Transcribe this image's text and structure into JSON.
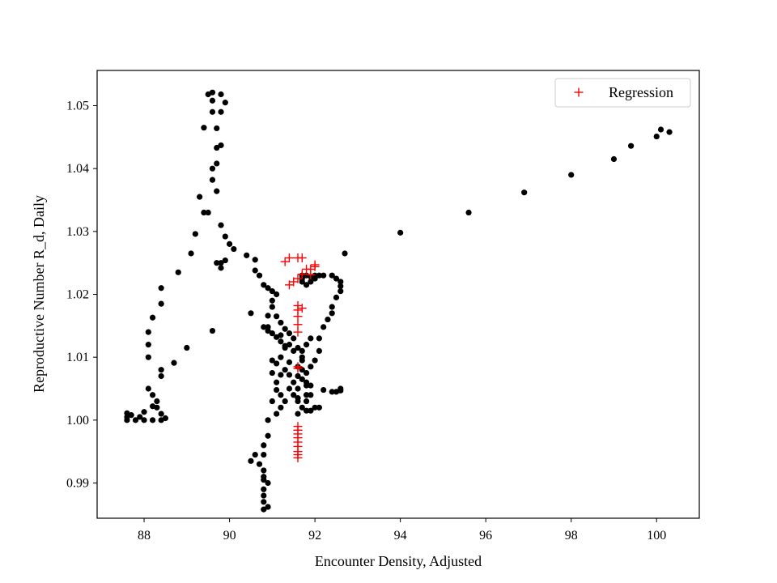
{
  "chart_data": {
    "type": "scatter",
    "title": "",
    "xlabel": "Encounter Density, Adjusted",
    "ylabel": "Reproductive Number R_d, Daily",
    "xlim": [
      86.9,
      101.0
    ],
    "ylim": [
      0.9844,
      1.0556
    ],
    "xticks": [
      88,
      90,
      92,
      94,
      96,
      98,
      100
    ],
    "yticks": [
      0.99,
      1.0,
      1.01,
      1.02,
      1.03,
      1.04,
      1.05
    ],
    "grid": false,
    "legend_position": "upper-right",
    "colors": {
      "observed": "#000000",
      "regression": "#ff0000"
    },
    "series": [
      {
        "marker": "circle",
        "color": "#000000",
        "points": [
          [
            87.6,
            1.0011
          ],
          [
            87.6,
            1.0005
          ],
          [
            87.6,
            1.0
          ],
          [
            87.7,
            1.0008
          ],
          [
            87.8,
            1.0
          ],
          [
            87.9,
            1.0005
          ],
          [
            88.0,
            1.0
          ],
          [
            88.0,
            1.0013
          ],
          [
            88.2,
            1.0
          ],
          [
            88.1,
            1.005
          ],
          [
            88.2,
            1.004
          ],
          [
            88.3,
            1.003
          ],
          [
            88.4,
            1.007
          ],
          [
            88.4,
            1.008
          ],
          [
            88.2,
            1.0022
          ],
          [
            88.3,
            1.002
          ],
          [
            88.4,
            1.001
          ],
          [
            88.4,
            1.0
          ],
          [
            88.5,
            1.0003
          ],
          [
            88.1,
            1.01
          ],
          [
            88.1,
            1.012
          ],
          [
            88.1,
            1.014
          ],
          [
            88.2,
            1.0163
          ],
          [
            88.4,
            1.0185
          ],
          [
            88.4,
            1.021
          ],
          [
            88.7,
            1.0091
          ],
          [
            89.0,
            1.0115
          ],
          [
            88.8,
            1.0235
          ],
          [
            89.1,
            1.0265
          ],
          [
            89.2,
            1.0296
          ],
          [
            89.3,
            1.0355
          ],
          [
            89.4,
            1.033
          ],
          [
            89.5,
            1.033
          ],
          [
            89.4,
            1.0465
          ],
          [
            89.5,
            1.0518
          ],
          [
            89.6,
            1.0521
          ],
          [
            89.6,
            1.0508
          ],
          [
            89.6,
            1.049
          ],
          [
            89.7,
            1.0464
          ],
          [
            89.8,
            1.049
          ],
          [
            89.8,
            1.0518
          ],
          [
            89.9,
            1.0505
          ],
          [
            89.7,
            1.0433
          ],
          [
            89.8,
            1.0437
          ],
          [
            89.7,
            1.0408
          ],
          [
            89.6,
            1.04
          ],
          [
            89.6,
            1.0382
          ],
          [
            89.7,
            1.0364
          ],
          [
            89.8,
            1.031
          ],
          [
            89.9,
            1.0292
          ],
          [
            90.0,
            1.028
          ],
          [
            90.1,
            1.0272
          ],
          [
            89.7,
            1.025
          ],
          [
            89.8,
            1.025
          ],
          [
            89.8,
            1.0242
          ],
          [
            89.9,
            1.0254
          ],
          [
            89.6,
            1.0142
          ],
          [
            90.4,
            1.0262
          ],
          [
            90.6,
            1.0255
          ],
          [
            90.6,
            1.0238
          ],
          [
            90.7,
            1.023
          ],
          [
            90.8,
            1.0215
          ],
          [
            90.9,
            1.021
          ],
          [
            91.0,
            1.0205
          ],
          [
            91.0,
            1.019
          ],
          [
            91.1,
            1.02
          ],
          [
            91.0,
            1.018
          ],
          [
            90.9,
            1.0166
          ],
          [
            90.9,
            1.0148
          ],
          [
            91.1,
            1.0165
          ],
          [
            91.2,
            1.0155
          ],
          [
            91.3,
            1.0145
          ],
          [
            91.2,
            1.0135
          ],
          [
            91.4,
            1.0138
          ],
          [
            91.5,
            1.013
          ],
          [
            91.3,
            1.0115
          ],
          [
            91.4,
            1.012
          ],
          [
            91.5,
            1.011
          ],
          [
            91.6,
            1.0115
          ],
          [
            91.7,
            1.011
          ],
          [
            91.8,
            1.012
          ],
          [
            91.9,
            1.013
          ],
          [
            90.8,
            1.0148
          ],
          [
            90.9,
            1.0142
          ],
          [
            91.0,
            1.0138
          ],
          [
            91.1,
            1.0132
          ],
          [
            91.2,
            1.0125
          ],
          [
            91.3,
            1.0118
          ],
          [
            90.5,
            1.017
          ],
          [
            91.2,
            1.01
          ],
          [
            91.1,
            1.009
          ],
          [
            91.3,
            1.008
          ],
          [
            91.4,
            1.0092
          ],
          [
            91.4,
            1.0072
          ],
          [
            91.5,
            1.006
          ],
          [
            91.6,
            1.007
          ],
          [
            91.7,
            1.0065
          ],
          [
            91.6,
            1.005
          ],
          [
            91.8,
            1.004
          ],
          [
            91.8,
            1.006
          ],
          [
            91.7,
            1.002
          ],
          [
            91.8,
            1.003
          ],
          [
            91.9,
            1.004
          ],
          [
            91.9,
            1.0055
          ],
          [
            91.6,
            1.003
          ],
          [
            91.6,
            1.001
          ],
          [
            91.8,
            1.0015
          ],
          [
            91.9,
            1.0015
          ],
          [
            92.0,
            1.002
          ],
          [
            91.1,
            1.001
          ],
          [
            91.2,
            1.002
          ],
          [
            91.2,
            1.004
          ],
          [
            91.1,
            1.0048
          ],
          [
            91.0,
            1.003
          ],
          [
            91.3,
            1.003
          ],
          [
            91.4,
            1.005
          ],
          [
            91.1,
            1.006
          ],
          [
            91.0,
            1.0075
          ],
          [
            91.0,
            1.0095
          ],
          [
            91.2,
            1.0072
          ],
          [
            91.5,
            1.004
          ],
          [
            91.6,
            1.0035
          ],
          [
            91.7,
            1.0095
          ],
          [
            91.6,
            1.0085
          ],
          [
            91.7,
            1.01
          ],
          [
            91.7,
            1.008
          ],
          [
            91.8,
            1.0075
          ],
          [
            91.8,
            1.0055
          ],
          [
            92.2,
            1.0048
          ],
          [
            92.4,
            1.0045
          ],
          [
            92.5,
            1.0045
          ],
          [
            92.6,
            1.0047
          ],
          [
            92.6,
            1.005
          ],
          [
            92.1,
            1.002
          ],
          [
            90.9,
            1.0
          ],
          [
            90.9,
            0.9975
          ],
          [
            90.8,
            0.996
          ],
          [
            90.8,
            0.9945
          ],
          [
            90.7,
            0.993
          ],
          [
            90.8,
            0.992
          ],
          [
            90.8,
            0.991
          ],
          [
            90.9,
            0.99
          ],
          [
            90.8,
            0.9905
          ],
          [
            90.8,
            0.989
          ],
          [
            90.8,
            0.988
          ],
          [
            90.8,
            0.987
          ],
          [
            90.9,
            0.9862
          ],
          [
            90.8,
            0.9858
          ],
          [
            90.6,
            0.9945
          ],
          [
            90.5,
            0.9935
          ],
          [
            92.7,
            1.0265
          ],
          [
            92.6,
            1.022
          ],
          [
            92.6,
            1.0213
          ],
          [
            92.6,
            1.0205
          ],
          [
            92.5,
            1.0195
          ],
          [
            92.4,
            1.018
          ],
          [
            92.4,
            1.017
          ],
          [
            92.3,
            1.016
          ],
          [
            92.2,
            1.0148
          ],
          [
            92.1,
            1.013
          ],
          [
            92.1,
            1.011
          ],
          [
            92.0,
            1.0095
          ],
          [
            91.9,
            1.0085
          ],
          [
            92.5,
            1.0225
          ],
          [
            92.4,
            1.023
          ],
          [
            92.2,
            1.023
          ],
          [
            92.1,
            1.023
          ],
          [
            92.0,
            1.023
          ],
          [
            91.9,
            1.0228
          ],
          [
            91.8,
            1.023
          ],
          [
            91.7,
            1.023
          ],
          [
            91.7,
            1.0225
          ],
          [
            91.7,
            1.022
          ],
          [
            91.8,
            1.0215
          ],
          [
            91.9,
            1.022
          ],
          [
            92.0,
            1.0225
          ],
          [
            94.0,
            1.0298
          ],
          [
            95.6,
            1.033
          ],
          [
            96.9,
            1.0362
          ],
          [
            98.0,
            1.039
          ],
          [
            99.0,
            1.0415
          ],
          [
            99.4,
            1.0436
          ],
          [
            100.0,
            1.0451
          ],
          [
            100.1,
            1.0462
          ],
          [
            100.3,
            1.0458
          ]
        ]
      },
      {
        "name": "Regression",
        "marker": "plus",
        "color": "#ff0000",
        "points": [
          [
            91.3,
            1.0252
          ],
          [
            91.4,
            1.0258
          ],
          [
            91.6,
            1.0258
          ],
          [
            91.7,
            1.0258
          ],
          [
            91.8,
            1.024
          ],
          [
            91.9,
            1.024
          ],
          [
            92.0,
            1.0244
          ],
          [
            92.0,
            1.0247
          ],
          [
            91.9,
            1.0231
          ],
          [
            91.6,
            1.0225
          ],
          [
            91.7,
            1.0232
          ],
          [
            91.4,
            1.0215
          ],
          [
            91.5,
            1.022
          ],
          [
            91.6,
            1.0182
          ],
          [
            91.6,
            1.0175
          ],
          [
            91.7,
            1.0178
          ],
          [
            91.6,
            1.0165
          ],
          [
            91.6,
            1.0152
          ],
          [
            91.6,
            1.014
          ],
          [
            91.6,
            1.0082
          ],
          [
            91.6,
            1.0085
          ],
          [
            91.6,
            0.999
          ],
          [
            91.6,
            0.9984
          ],
          [
            91.6,
            0.9978
          ],
          [
            91.6,
            0.9972
          ],
          [
            91.6,
            0.9965
          ],
          [
            91.6,
            0.9958
          ],
          [
            91.6,
            0.995
          ],
          [
            91.6,
            0.9945
          ],
          [
            91.6,
            0.994
          ]
        ]
      }
    ]
  }
}
